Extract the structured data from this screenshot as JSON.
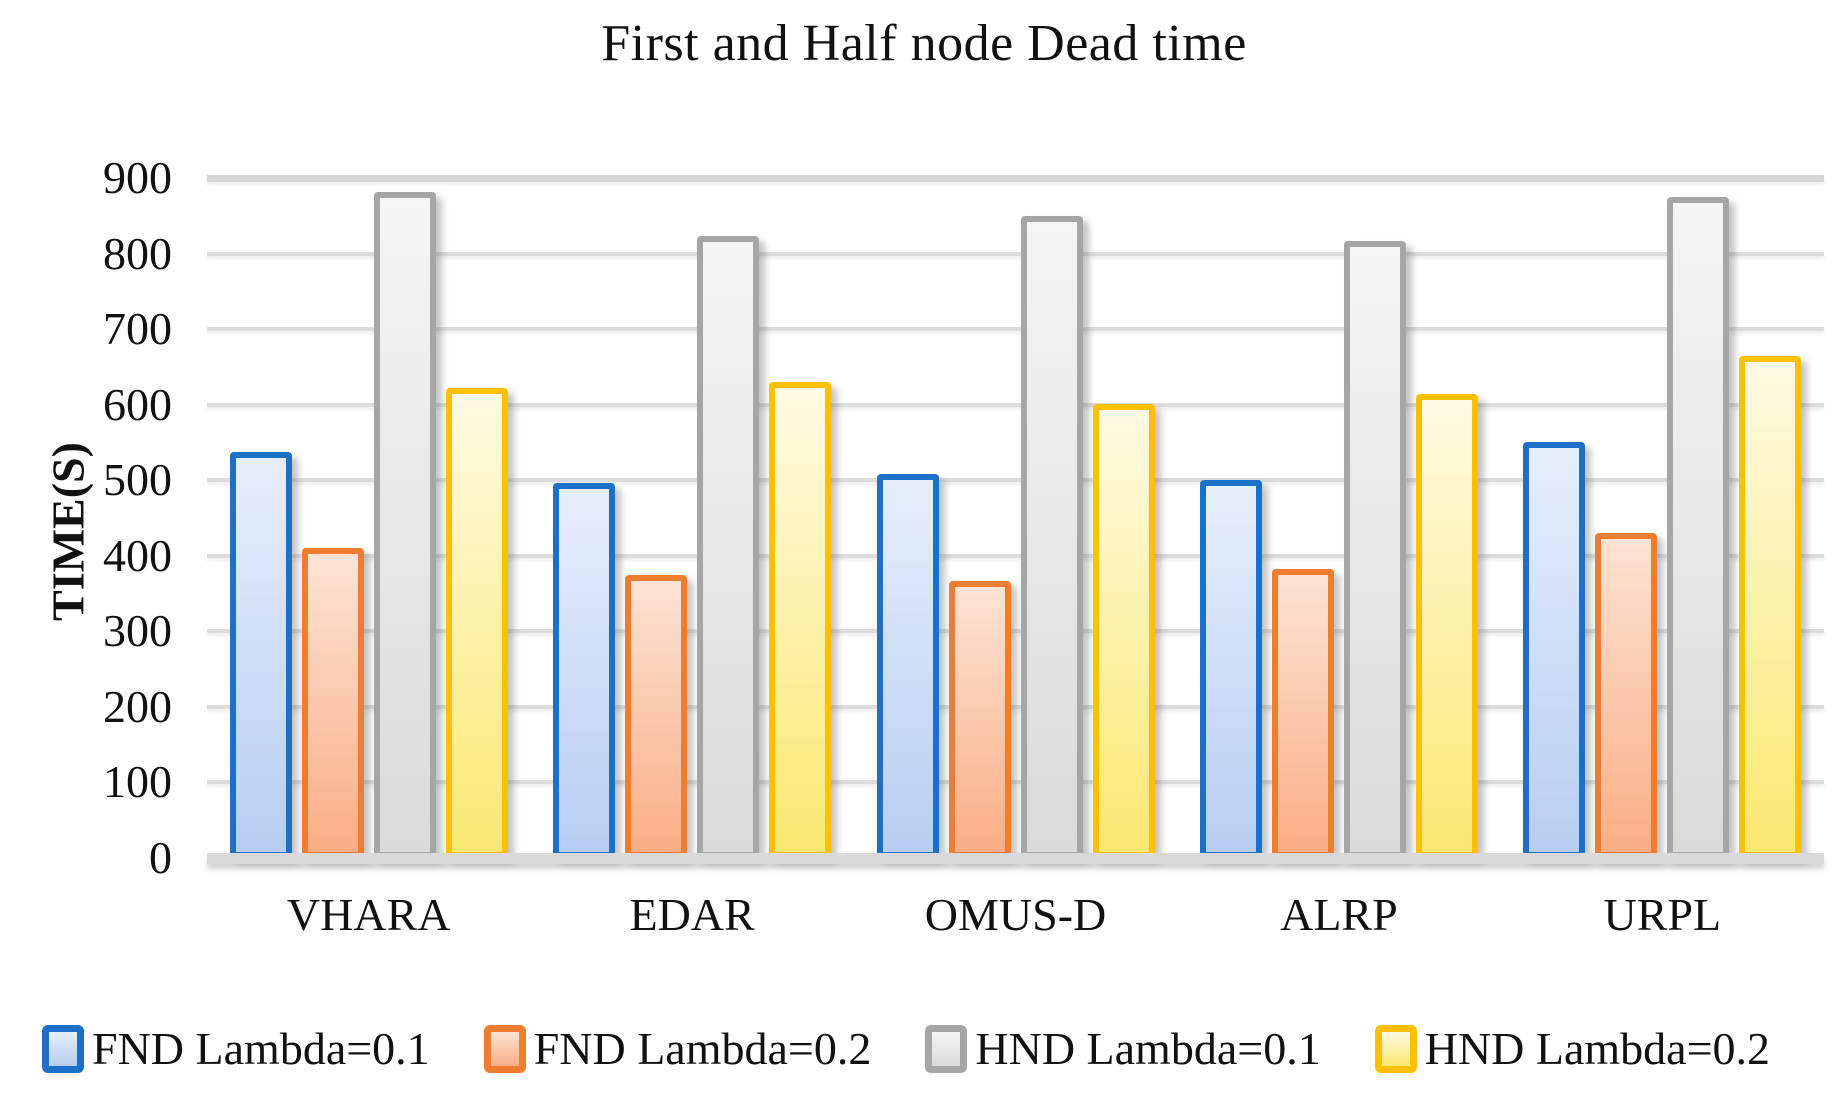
{
  "title": "First and Half node Dead time",
  "y_axis": {
    "label": "TIME(S)",
    "ticks": [
      0,
      100,
      200,
      300,
      400,
      500,
      600,
      700,
      800,
      900
    ]
  },
  "legend_labels": [
    "FND Lambda=0.1",
    "FND Lambda=0.2",
    "HND Lambda=0.1",
    "HND Lambda=0.2"
  ],
  "colors": {
    "gridline": "#dcdcdc",
    "axis_line": "#d9d9d9"
  },
  "chart_data": {
    "type": "bar",
    "title": "First and Half node Dead time",
    "xlabel": "",
    "ylabel": "TIME(S)",
    "ylim": [
      0,
      900
    ],
    "grid": true,
    "legend_position": "bottom",
    "categories": [
      "VHARA",
      "EDAR",
      "OMUS-D",
      "ALRP",
      "URPL"
    ],
    "series": [
      {
        "name": "FND Lambda=0.1",
        "values": [
          538,
          496,
          508,
          500,
          551
        ],
        "border_color": "#1c70c8",
        "fill_top": "#e6eefb",
        "fill_bottom": "#b7cef2"
      },
      {
        "name": "FND Lambda=0.2",
        "values": [
          410,
          374,
          366,
          383,
          430
        ],
        "border_color": "#ee7d31",
        "fill_top": "#fce3d3",
        "fill_bottom": "#f9ae85"
      },
      {
        "name": "HND Lambda=0.1",
        "values": [
          881,
          823,
          850,
          816,
          875
        ],
        "border_color": "#a6a6a6",
        "fill_top": "#f5f5f5",
        "fill_bottom": "#dadada"
      },
      {
        "name": "HND Lambda=0.2",
        "values": [
          622,
          630,
          601,
          614,
          665
        ],
        "border_color": "#ffc002",
        "fill_top": "#fffae2",
        "fill_bottom": "#fae870"
      }
    ]
  }
}
